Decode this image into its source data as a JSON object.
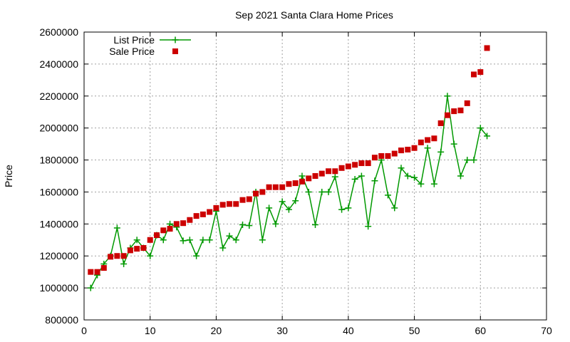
{
  "chart_data": {
    "type": "line",
    "title": "Sep 2021 Santa Clara Home Prices",
    "xlabel": "",
    "ylabel": "Price",
    "xlim": [
      0,
      70
    ],
    "ylim": [
      800000,
      2600000
    ],
    "x_ticks": [
      "0",
      "10",
      "20",
      "30",
      "40",
      "50",
      "60",
      "70"
    ],
    "y_ticks": [
      "800000",
      "1000000",
      "1200000",
      "1400000",
      "1600000",
      "1800000",
      "2000000",
      "2200000",
      "2400000",
      "2600000"
    ],
    "grid": true,
    "legend_position": "top-left",
    "series": [
      {
        "name": "List Price",
        "style": "line-plus",
        "color": "#009900",
        "x": [
          1,
          2,
          3,
          4,
          5,
          6,
          7,
          8,
          9,
          10,
          11,
          12,
          13,
          14,
          15,
          16,
          17,
          18,
          19,
          20,
          21,
          22,
          23,
          24,
          25,
          26,
          27,
          28,
          29,
          30,
          31,
          32,
          33,
          34,
          35,
          36,
          37,
          38,
          39,
          40,
          41,
          42,
          43,
          44,
          45,
          46,
          47,
          48,
          49,
          50,
          51,
          52,
          53,
          54,
          55,
          56,
          57,
          58,
          59,
          60,
          61
        ],
        "y": [
          1000000,
          1080000,
          1150000,
          1200000,
          1375000,
          1150000,
          1250000,
          1300000,
          1250000,
          1200000,
          1330000,
          1300000,
          1400000,
          1380000,
          1295000,
          1300000,
          1200000,
          1300000,
          1300000,
          1480000,
          1250000,
          1325000,
          1300000,
          1395000,
          1390000,
          1600000,
          1300000,
          1500000,
          1400000,
          1540000,
          1490000,
          1545000,
          1700000,
          1600000,
          1395000,
          1600000,
          1600000,
          1695000,
          1490000,
          1500000,
          1680000,
          1700000,
          1385000,
          1670000,
          1800000,
          1580000,
          1500000,
          1750000,
          1700000,
          1690000,
          1650000,
          1875000,
          1650000,
          1850000,
          2200000,
          1900000,
          1700000,
          1800000,
          1800000,
          2000000,
          1950000
        ]
      },
      {
        "name": "Sale Price",
        "style": "square-markers",
        "color": "#cc0000",
        "x": [
          1,
          2,
          3,
          4,
          5,
          6,
          7,
          8,
          9,
          10,
          11,
          12,
          13,
          14,
          15,
          16,
          17,
          18,
          19,
          20,
          21,
          22,
          23,
          24,
          25,
          26,
          27,
          28,
          29,
          30,
          31,
          32,
          33,
          34,
          35,
          36,
          37,
          38,
          39,
          40,
          41,
          42,
          43,
          44,
          45,
          46,
          47,
          48,
          49,
          50,
          51,
          52,
          53,
          54,
          55,
          56,
          57,
          58,
          59,
          60,
          61
        ],
        "y": [
          1100000,
          1100000,
          1125000,
          1195000,
          1200000,
          1200000,
          1235000,
          1245000,
          1250000,
          1300000,
          1330000,
          1360000,
          1370000,
          1400000,
          1405000,
          1425000,
          1450000,
          1460000,
          1475000,
          1500000,
          1520000,
          1525000,
          1525000,
          1550000,
          1555000,
          1590000,
          1600000,
          1630000,
          1630000,
          1630000,
          1650000,
          1655000,
          1665000,
          1685000,
          1700000,
          1715000,
          1730000,
          1730000,
          1750000,
          1760000,
          1770000,
          1780000,
          1780000,
          1815000,
          1825000,
          1825000,
          1840000,
          1860000,
          1865000,
          1875000,
          1910000,
          1925000,
          1935000,
          2030000,
          2080000,
          2105000,
          2110000,
          2155000,
          2335000,
          2350000,
          2500000
        ]
      }
    ]
  }
}
